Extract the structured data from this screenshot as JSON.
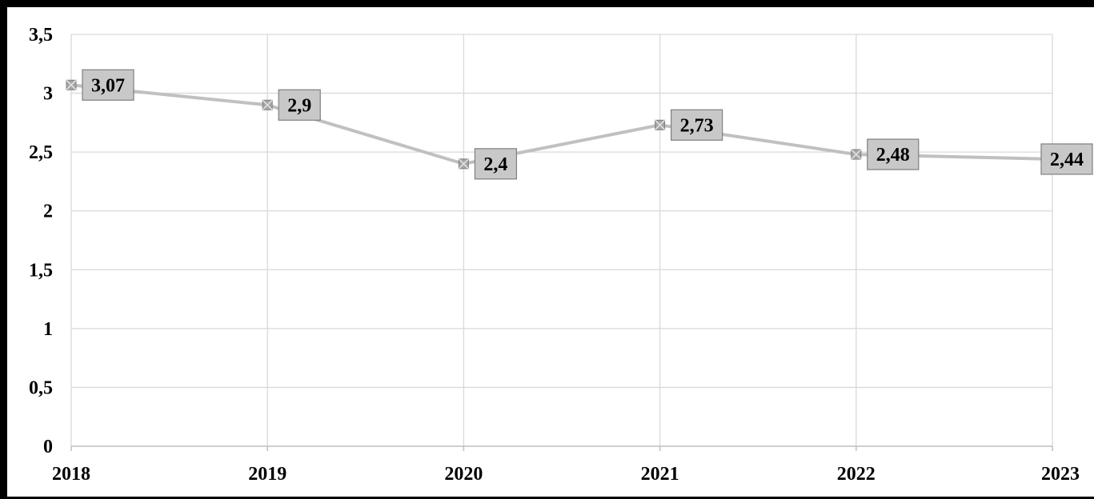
{
  "chart_data": {
    "type": "line",
    "title": "",
    "xlabel": "",
    "ylabel": "",
    "categories": [
      "2018",
      "2019",
      "2020",
      "2021",
      "2022",
      "2023"
    ],
    "series": [
      {
        "values": [
          3.07,
          2.9,
          2.4,
          2.73,
          2.48,
          2.44
        ],
        "data_labels": [
          "3,07",
          "2,9",
          "2,4",
          "2,73",
          "2,48",
          "2,44"
        ],
        "color": "#c0c0c0"
      }
    ],
    "ylim": [
      0,
      3.5
    ],
    "y_ticks": [
      0,
      0.5,
      1,
      1.5,
      2,
      2.5,
      3,
      3.5
    ],
    "y_tick_labels": [
      "0",
      "0,5",
      "1",
      "1,5",
      "2",
      "2,5",
      "3",
      "3,5"
    ],
    "grid": true,
    "legend": "none",
    "colors": {
      "gridline": "#d9d9d9",
      "axis": "#bfbfbf",
      "label_box_fill": "#c8c8c8",
      "label_box_border": "#7f7f7f",
      "frame": "#000000"
    }
  }
}
